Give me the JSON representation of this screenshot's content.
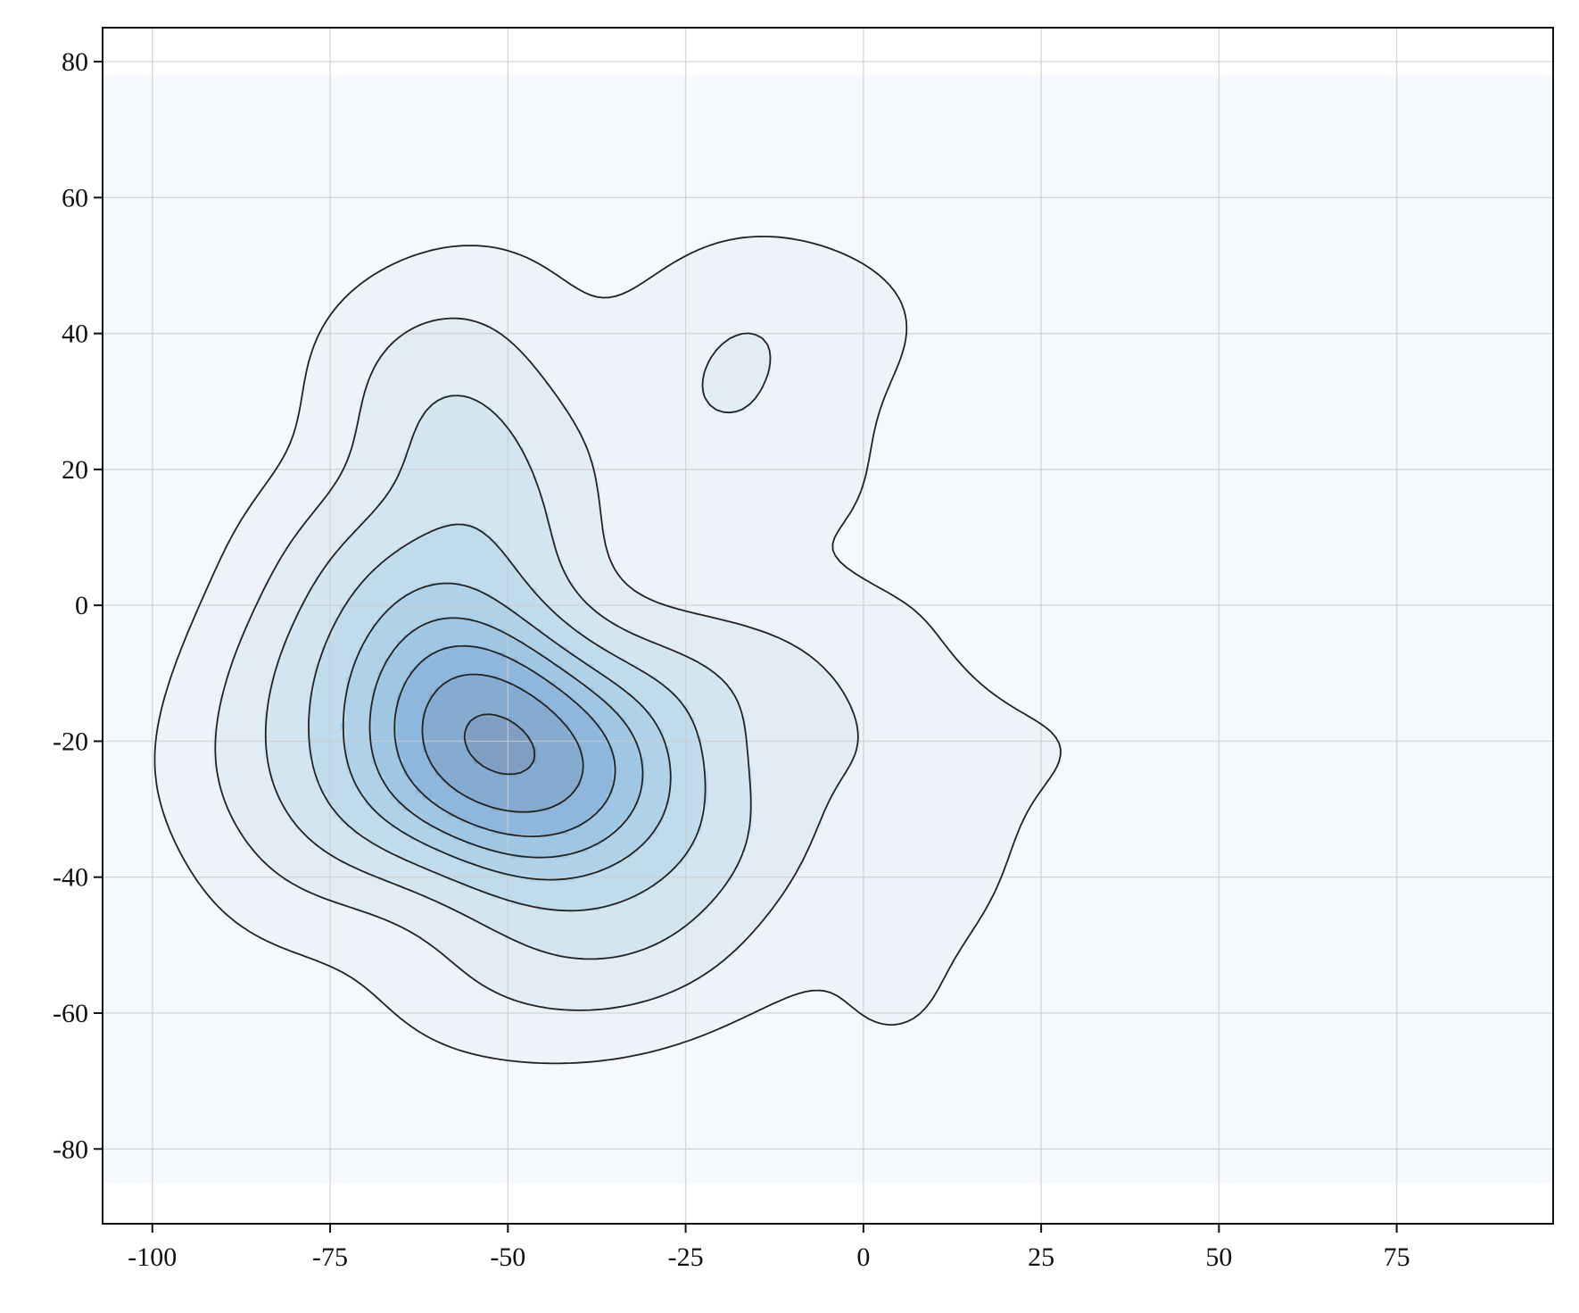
{
  "chart_data": {
    "type": "contour",
    "title": "",
    "xlabel": "",
    "ylabel": "",
    "xlim": [
      -107,
      97
    ],
    "ylim": [
      -91,
      85
    ],
    "x_ticks": [
      -100,
      -75,
      -50,
      -25,
      0,
      25,
      50,
      75
    ],
    "x_tick_labels": [
      "-100",
      "-75",
      "-50",
      "-25",
      "0",
      "25",
      "50",
      "75"
    ],
    "y_ticks": [
      -80,
      -60,
      -40,
      -20,
      0,
      20,
      40,
      60,
      80
    ],
    "y_tick_labels": [
      "-80",
      "-60",
      "-40",
      "-20",
      "0",
      "20",
      "40",
      "60",
      "80"
    ],
    "grid": true,
    "legend": "none",
    "colormap": "Blues",
    "colors": {
      "background_fill": "#f5f9fd",
      "contour_line": "#222222",
      "grid": "#cccccc",
      "level_fills": [
        "#edf3f9",
        "#e2ecf5",
        "#d3e5f1",
        "#c0dcec",
        "#afd2e8",
        "#9fc6e2",
        "#8fb6dc",
        "#86abd1",
        "#7f9ec2"
      ]
    },
    "density_field": {
      "x_range": [
        -107,
        97
      ],
      "y_range": [
        -85,
        78
      ],
      "bandwidth": [
        11,
        10
      ],
      "points": [
        {
          "x": -52,
          "y": -20,
          "w": 3.2
        },
        {
          "x": -56,
          "y": -12,
          "w": 2.6
        },
        {
          "x": -38,
          "y": -25,
          "w": 2.4
        },
        {
          "x": -66,
          "y": -28,
          "w": 1.6
        },
        {
          "x": -47,
          "y": -33,
          "w": 1.8
        },
        {
          "x": -62,
          "y": 2,
          "w": 1.3
        },
        {
          "x": -56,
          "y": 24,
          "w": 1.2
        },
        {
          "x": -48,
          "y": 10,
          "w": 0.9
        },
        {
          "x": -77,
          "y": -10,
          "w": 1.0
        },
        {
          "x": -85,
          "y": -24,
          "w": 0.6
        },
        {
          "x": -74,
          "y": 8,
          "w": 0.5
        },
        {
          "x": -28,
          "y": -12,
          "w": 1.0
        },
        {
          "x": -20,
          "y": -34,
          "w": 1.0
        },
        {
          "x": -10,
          "y": -10,
          "w": 0.6
        },
        {
          "x": -28,
          "y": -48,
          "w": 0.8
        },
        {
          "x": -42,
          "y": -52,
          "w": 0.7
        },
        {
          "x": -64,
          "y": 36,
          "w": 0.5
        },
        {
          "x": -52,
          "y": 44,
          "w": 0.35
        },
        {
          "x": -16,
          "y": 42,
          "w": 0.6
        },
        {
          "x": -24,
          "y": 28,
          "w": 0.5
        },
        {
          "x": -10,
          "y": 20,
          "w": 0.35
        },
        {
          "x": 2,
          "y": 42,
          "w": 0.25
        },
        {
          "x": 3,
          "y": -22,
          "w": 0.5
        },
        {
          "x": 10,
          "y": -40,
          "w": 0.35
        },
        {
          "x": 4,
          "y": -60,
          "w": 0.3
        },
        {
          "x": 16,
          "y": 6,
          "w": 0.25
        },
        {
          "x": 28,
          "y": -20,
          "w": 0.25
        },
        {
          "x": 45,
          "y": -38,
          "w": 0.2
        },
        {
          "x": 54,
          "y": -8,
          "w": 0.32
        },
        {
          "x": -80,
          "y": -40,
          "w": 0.4
        },
        {
          "x": -58,
          "y": -55,
          "w": 0.35
        }
      ],
      "level_fractions": [
        0.045,
        0.12,
        0.21,
        0.31,
        0.42,
        0.53,
        0.65,
        0.79,
        0.955
      ]
    }
  }
}
